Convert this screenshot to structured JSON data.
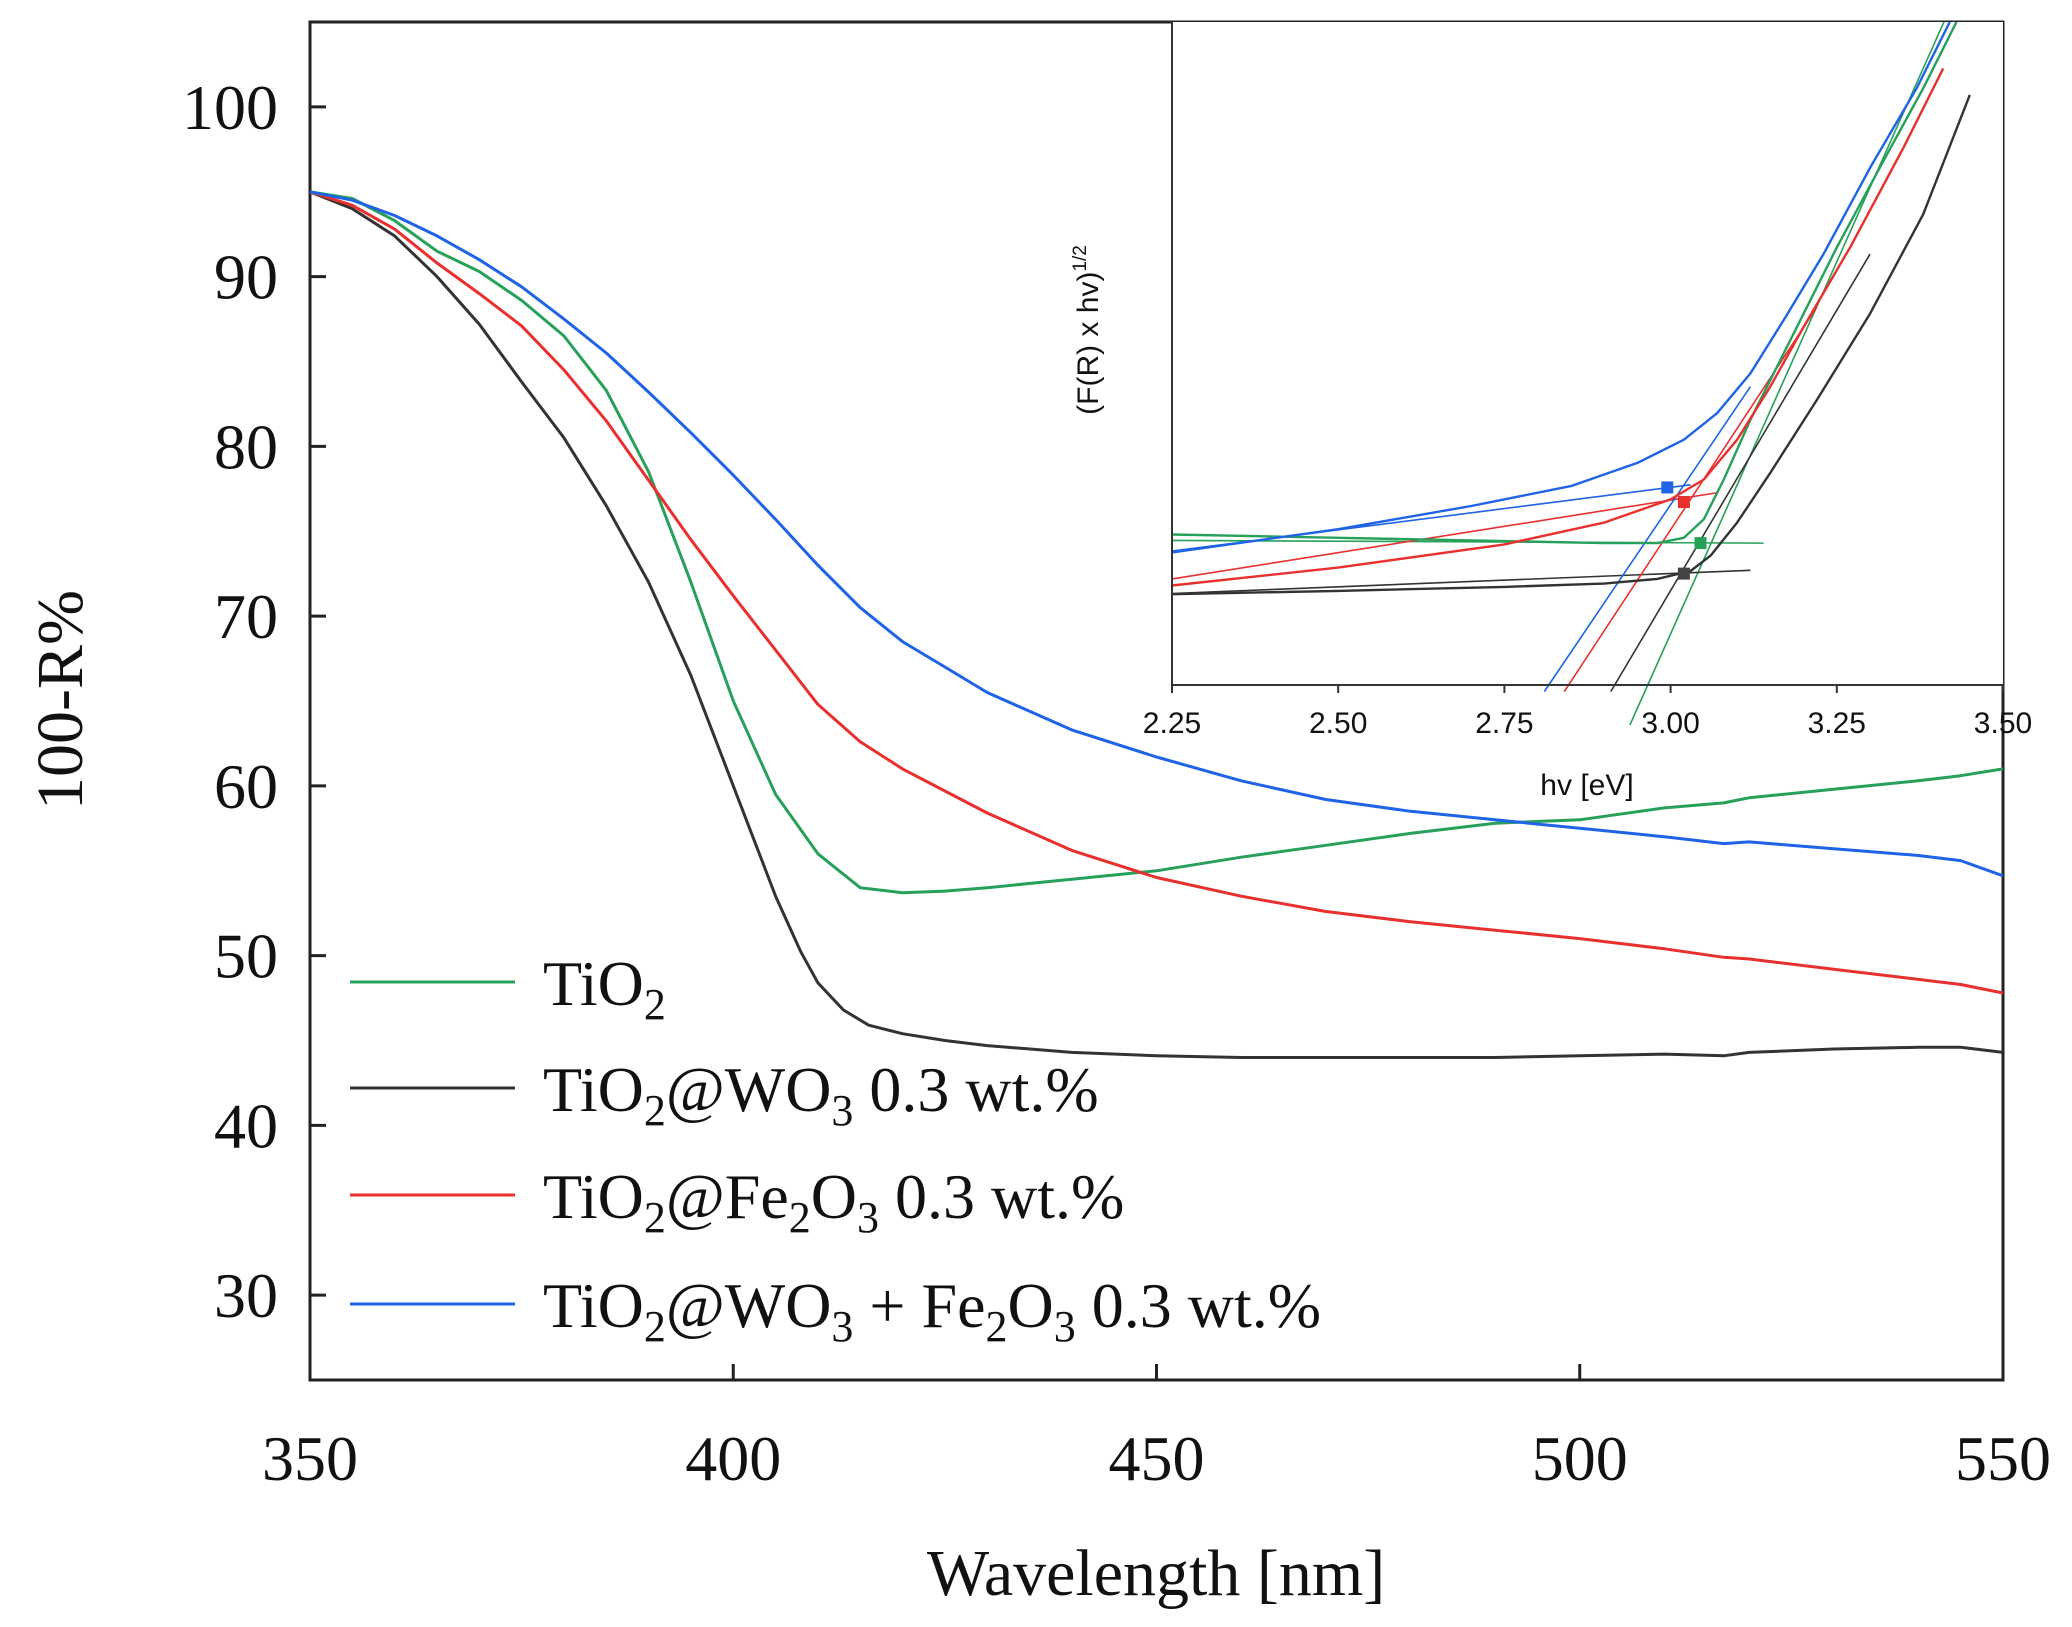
{
  "chart_data": [
    {
      "id": "main",
      "type": "line",
      "xlabel": "Wavelength [nm]",
      "ylabel": "100-R%",
      "xlim": [
        350,
        550
      ],
      "ylim": [
        25,
        105
      ],
      "xticks": [
        350,
        400,
        450,
        500,
        550
      ],
      "yticks": [
        30,
        40,
        50,
        60,
        70,
        80,
        90,
        100
      ],
      "legend_position": "bottom-left",
      "series": [
        {
          "name": "TiO2",
          "legend": {
            "base": "TiO",
            "sub": "2",
            "rest": ""
          },
          "color": "#27a05a",
          "x": [
            350,
            355,
            360,
            365,
            370,
            375,
            380,
            385,
            390,
            395,
            400,
            405,
            410,
            415,
            420,
            425,
            430,
            440,
            450,
            460,
            470,
            480,
            490,
            500,
            510,
            517,
            520,
            530,
            540,
            545,
            550
          ],
          "y": [
            95,
            94.6,
            93.3,
            91.5,
            90.3,
            88.6,
            86.5,
            83.3,
            78.5,
            72.0,
            65.0,
            59.5,
            56.0,
            54.0,
            53.7,
            53.8,
            54.0,
            54.5,
            55.0,
            55.8,
            56.5,
            57.2,
            57.8,
            58.0,
            58.7,
            59.0,
            59.3,
            59.8,
            60.3,
            60.6,
            61.0
          ]
        },
        {
          "name": "TiO2@WO3 0.3 wt.%",
          "legend": {
            "base": "TiO",
            "sub": "2",
            "rest": "@WO",
            "sub2": "3",
            "rest2": " 0.3 wt.%"
          },
          "color": "#333333",
          "x": [
            350,
            355,
            360,
            365,
            370,
            375,
            380,
            385,
            390,
            395,
            400,
            405,
            408,
            410,
            413,
            416,
            420,
            425,
            430,
            440,
            450,
            460,
            470,
            480,
            490,
            500,
            510,
            517,
            520,
            530,
            540,
            545,
            550
          ],
          "y": [
            95,
            94.0,
            92.4,
            90.0,
            87.2,
            83.8,
            80.5,
            76.5,
            72.0,
            66.5,
            60.0,
            53.5,
            50.2,
            48.4,
            46.8,
            45.9,
            45.4,
            45.0,
            44.7,
            44.3,
            44.1,
            44.0,
            44.0,
            44.0,
            44.0,
            44.1,
            44.2,
            44.1,
            44.3,
            44.5,
            44.6,
            44.6,
            44.3
          ]
        },
        {
          "name": "TiO2@Fe2O3 0.3 wt.%",
          "legend": {
            "base": "TiO",
            "sub": "2",
            "rest": "@Fe",
            "sub2": "2",
            "rest2": "O",
            "sub3": "3",
            "rest3": " 0.3 wt.%"
          },
          "color": "#e8302f",
          "x": [
            350,
            355,
            360,
            365,
            370,
            375,
            380,
            385,
            390,
            395,
            400,
            405,
            410,
            415,
            420,
            425,
            430,
            440,
            450,
            460,
            470,
            480,
            490,
            500,
            510,
            517,
            520,
            530,
            540,
            545,
            550
          ],
          "y": [
            95,
            94.2,
            92.8,
            90.8,
            89.0,
            87.1,
            84.5,
            81.5,
            78.0,
            74.5,
            71.2,
            68.0,
            64.8,
            62.6,
            61.0,
            59.7,
            58.4,
            56.2,
            54.6,
            53.5,
            52.6,
            52.0,
            51.5,
            51.0,
            50.4,
            49.9,
            49.8,
            49.2,
            48.6,
            48.3,
            47.8
          ]
        },
        {
          "name": "TiO2@WO3 + Fe2O3 0.3 wt.%",
          "legend": {
            "base": "TiO",
            "sub": "2",
            "rest": "@WO",
            "sub2": "3",
            "rest2": " + Fe",
            "sub3": "2",
            "rest3": "O",
            "sub4": "3",
            "rest4": " 0.3 wt.%"
          },
          "color": "#1f63e6",
          "x": [
            350,
            355,
            360,
            365,
            370,
            375,
            380,
            385,
            390,
            395,
            400,
            405,
            410,
            415,
            420,
            425,
            430,
            440,
            450,
            460,
            470,
            480,
            490,
            500,
            510,
            517,
            520,
            530,
            540,
            545,
            550
          ],
          "y": [
            95,
            94.5,
            93.6,
            92.4,
            91.0,
            89.4,
            87.5,
            85.5,
            83.2,
            80.8,
            78.3,
            75.7,
            73.0,
            70.5,
            68.5,
            67.0,
            65.5,
            63.3,
            61.7,
            60.3,
            59.2,
            58.5,
            58.0,
            57.5,
            57.0,
            56.6,
            56.7,
            56.3,
            55.9,
            55.6,
            54.7
          ]
        }
      ]
    },
    {
      "id": "inset",
      "type": "line",
      "xlabel": "hv [eV]",
      "ylabel": "(F(R) x hv)",
      "ylabel_sup": "1/2",
      "xlim": [
        2.25,
        3.5
      ],
      "ylim": [
        0,
        1
      ],
      "xticks": [
        2.25,
        2.5,
        2.75,
        3.0,
        3.25,
        3.5
      ],
      "xtick_labels": [
        "2.25",
        "2.50",
        "2.75",
        "3.00",
        "3.25",
        "3.50"
      ],
      "series": [
        {
          "name": "TiO2",
          "color": "#27a05a",
          "x": [
            2.25,
            2.5,
            2.75,
            2.9,
            2.98,
            3.02,
            3.05,
            3.08,
            3.12,
            3.18,
            3.25,
            3.32,
            3.38,
            3.43
          ],
          "y": [
            0.227,
            0.222,
            0.217,
            0.214,
            0.214,
            0.222,
            0.25,
            0.31,
            0.4,
            0.52,
            0.66,
            0.79,
            0.9,
            1.0
          ]
        },
        {
          "name": "TiO2@WO3 0.3 wt.%",
          "color": "#333333",
          "x": [
            2.25,
            2.5,
            2.75,
            2.9,
            2.98,
            3.03,
            3.06,
            3.1,
            3.15,
            3.22,
            3.3,
            3.38,
            3.45
          ],
          "y": [
            0.137,
            0.142,
            0.148,
            0.153,
            0.16,
            0.172,
            0.195,
            0.245,
            0.32,
            0.43,
            0.56,
            0.71,
            0.89
          ]
        },
        {
          "name": "TiO2@Fe2O3 0.3 wt.%",
          "color": "#e8302f",
          "x": [
            2.25,
            2.5,
            2.75,
            2.9,
            3.0,
            3.05,
            3.1,
            3.15,
            3.2,
            3.27,
            3.35,
            3.41
          ],
          "y": [
            0.15,
            0.177,
            0.212,
            0.245,
            0.28,
            0.31,
            0.37,
            0.45,
            0.54,
            0.66,
            0.81,
            0.93
          ]
        },
        {
          "name": "TiO2@WO3 + Fe2O3 0.3 wt.%",
          "color": "#1f63e6",
          "x": [
            2.25,
            2.5,
            2.7,
            2.85,
            2.95,
            3.02,
            3.07,
            3.12,
            3.17,
            3.23,
            3.3,
            3.37,
            3.42
          ],
          "y": [
            0.2,
            0.235,
            0.27,
            0.3,
            0.335,
            0.37,
            0.41,
            0.47,
            0.55,
            0.65,
            0.78,
            0.9,
            1.0
          ]
        }
      ],
      "tangents": [
        {
          "series": "TiO2",
          "color": "#27a05a",
          "x": [
            2.25,
            3.14
          ],
          "y": [
            0.218,
            0.214
          ]
        },
        {
          "series": "TiO2",
          "color": "#27a05a",
          "x": [
            2.93,
            3.42
          ],
          "y": [
            -0.08,
            1.02
          ]
        },
        {
          "series": "TiO2@WO3 0.3 wt.%",
          "color": "#333333",
          "x": [
            2.25,
            3.12
          ],
          "y": [
            0.138,
            0.173
          ]
        },
        {
          "series": "TiO2@WO3 0.3 wt.%",
          "color": "#333333",
          "x": [
            2.91,
            3.3
          ],
          "y": [
            -0.01,
            0.65
          ]
        },
        {
          "series": "TiO2@Fe2O3 0.3 wt.%",
          "color": "#e8302f",
          "x": [
            2.25,
            3.07
          ],
          "y": [
            0.16,
            0.29
          ]
        },
        {
          "series": "TiO2@Fe2O3 0.3 wt.%",
          "color": "#e8302f",
          "x": [
            2.84,
            3.22
          ],
          "y": [
            -0.01,
            0.57
          ]
        },
        {
          "series": "TiO2@WO3 + Fe2O3 0.3 wt.%",
          "color": "#1f63e6",
          "x": [
            2.25,
            3.03
          ],
          "y": [
            0.202,
            0.302
          ]
        },
        {
          "series": "TiO2@WO3 + Fe2O3 0.3 wt.%",
          "color": "#1f63e6",
          "x": [
            2.81,
            3.12
          ],
          "y": [
            -0.01,
            0.45
          ]
        }
      ],
      "markers": [
        {
          "series": "TiO2",
          "color": "#27a05a",
          "x": 3.045,
          "y": 0.214
        },
        {
          "series": "TiO2@WO3 0.3 wt.%",
          "color": "#444444",
          "x": 3.02,
          "y": 0.168
        },
        {
          "series": "TiO2@Fe2O3 0.3 wt.%",
          "color": "#e8302f",
          "x": 3.02,
          "y": 0.276
        },
        {
          "series": "TiO2@WO3 + Fe2O3 0.3 wt.%",
          "color": "#1f63e6",
          "x": 2.995,
          "y": 0.298
        }
      ]
    }
  ]
}
